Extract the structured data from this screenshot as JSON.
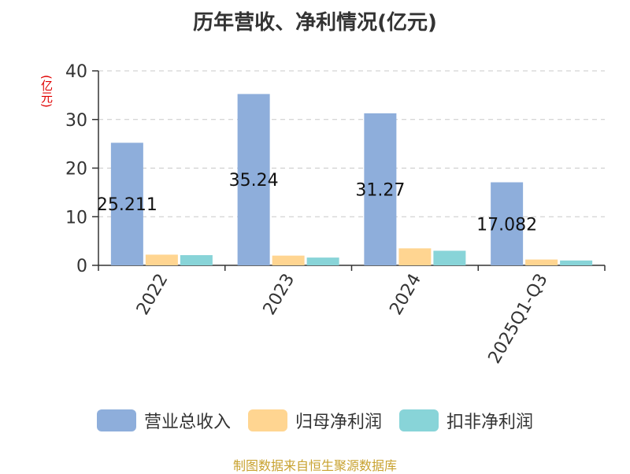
{
  "title": "历年营收、净利情况(亿元)",
  "unit_label": "(亿元)",
  "source": "制图数据来自恒生聚源数据库",
  "chart_data": {
    "type": "bar",
    "categories": [
      "2022",
      "2023",
      "2024",
      "2025Q1-Q3"
    ],
    "series": [
      {
        "name": "营业总收入",
        "color": "#8eaedb",
        "values": [
          25.211,
          35.24,
          31.27,
          17.082
        ]
      },
      {
        "name": "归母净利润",
        "color": "#ffd591",
        "values": [
          2.2,
          2.0,
          3.5,
          1.2
        ]
      },
      {
        "name": "扣非净利润",
        "color": "#88d4d8",
        "values": [
          2.1,
          1.6,
          3.0,
          1.0
        ]
      }
    ],
    "data_labels": [
      "25.211",
      "35.24",
      "31.27",
      "17.082"
    ],
    "y_ticks": [
      "0",
      "10",
      "20",
      "30",
      "40"
    ],
    "ylim": [
      0,
      40
    ],
    "grid": true,
    "legend_position": "bottom"
  }
}
